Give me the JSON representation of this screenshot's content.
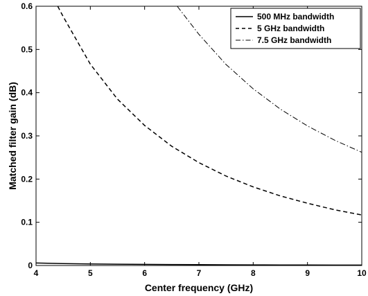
{
  "chart_data": {
    "type": "line",
    "xlabel": "Center frequency (GHz)",
    "ylabel": "Matched filter gain (dB)",
    "xlim": [
      4,
      10
    ],
    "ylim": [
      0,
      0.6
    ],
    "xticks": [
      "4",
      "5",
      "6",
      "7",
      "8",
      "9",
      "10"
    ],
    "yticks": [
      "0",
      "0.1",
      "0.2",
      "0.3",
      "0.4",
      "0.5",
      "0.6"
    ],
    "grid": false,
    "legend_position": "top-right",
    "series": [
      {
        "name": "500 MHz bandwidth",
        "style": "solid",
        "x": [
          4,
          4.5,
          5,
          5.5,
          6,
          6.5,
          7,
          7.5,
          8,
          8.5,
          9,
          9.5,
          10
        ],
        "y": [
          0.0057,
          0.0045,
          0.0036,
          0.003,
          0.0025,
          0.0022,
          0.0019,
          0.0016,
          0.0014,
          0.0013,
          0.0011,
          0.001,
          0.0009
        ]
      },
      {
        "name": "5 GHz bandwidth",
        "style": "dashed",
        "x": [
          4.4,
          4.5,
          5,
          5.5,
          6,
          6.5,
          7,
          7.5,
          8,
          8.5,
          9,
          9.5,
          10
        ],
        "y": [
          0.6,
          0.576,
          0.466,
          0.385,
          0.324,
          0.276,
          0.238,
          0.207,
          0.182,
          0.161,
          0.144,
          0.129,
          0.117
        ]
      },
      {
        "name": "7.5 GHz bandwidth",
        "style": "dashdot",
        "x": [
          6.6,
          7,
          7.5,
          8,
          8.5,
          9,
          9.5,
          10
        ],
        "y": [
          0.6,
          0.535,
          0.465,
          0.409,
          0.362,
          0.323,
          0.29,
          0.262
        ]
      }
    ]
  }
}
